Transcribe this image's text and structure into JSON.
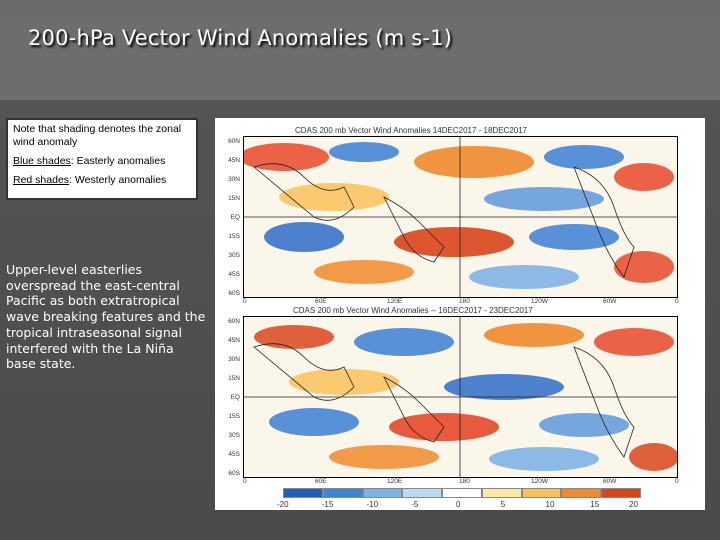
{
  "slide": {
    "title": "200-hPa Vector Wind Anomalies  (m s-1)",
    "note": {
      "line1": "Note that shading denotes the zonal wind anomaly",
      "blue_label": "Blue shades",
      "blue_text": ": Easterly anomalies",
      "red_label": "Red shades",
      "red_text": ": Westerly anomalies"
    },
    "body": "Upper-level easterlies overspread the east-central Pacific as both extratropical wave breaking features and the tropical intraseasonal signal interfered with the La Niña base state."
  },
  "figure": {
    "panel1_title": "CDAS  200 mb  Vector Wind Anomalies        14DEC2017 - 18DEC2017",
    "panel2_title": "CDAS  200 mb  Vector Wind Anomalies  --  16DEC2017 - 23DEC2017",
    "lat_labels": [
      "60N",
      "45N",
      "30N",
      "15N",
      "EQ",
      "15S",
      "30S",
      "45S",
      "60S"
    ],
    "lon_labels_top": [
      "0",
      "60E",
      "120E",
      "180",
      "120W",
      "60W",
      "0"
    ],
    "lon_labels_bottom": [
      "0",
      "60E",
      "120E",
      "180",
      "120W",
      "60W",
      "0"
    ],
    "colorbar_labels": [
      "-20",
      "-15",
      "-10",
      "-5",
      "0",
      "5",
      "10",
      "15",
      "20"
    ],
    "colorbar_colors": [
      "#1f5fc2",
      "#3d86d6",
      "#7fb2e6",
      "#bcd8f2",
      "#ffffff",
      "#fde8a8",
      "#f9c15a",
      "#f08a2c",
      "#d9451b"
    ]
  }
}
